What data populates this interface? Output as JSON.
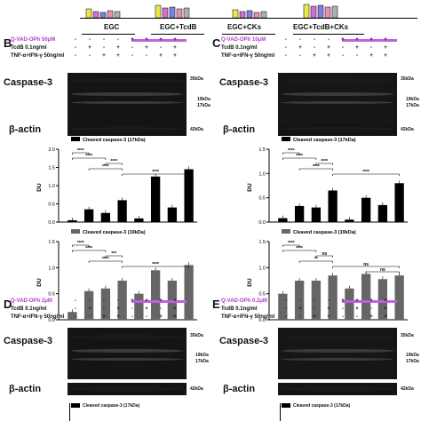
{
  "top_strip": {
    "groups": [
      "EGC",
      "EGC+TcdB",
      "EGC+CKs",
      "EGC+TcdB+CKs"
    ]
  },
  "panels": {
    "B": {
      "letter": "B",
      "inhibitor": "Q-VAD-OPh 50μM",
      "tcdb": "TcdB 0.1ng/ml",
      "cks": "TNF-α+IFN-γ 50ng/ml",
      "row_inhibitor": [
        "-",
        "-",
        "-",
        "-",
        "+",
        "+",
        "+",
        "+"
      ],
      "row_tcdb": [
        "-",
        "+",
        "-",
        "+",
        "-",
        "+",
        "-",
        "+"
      ],
      "row_cks": [
        "-",
        "-",
        "+",
        "+",
        "-",
        "-",
        "+",
        "+"
      ],
      "blot1": "Caspase-3",
      "blot2": "β-actin",
      "m35": "35kDa",
      "m19": "19kDa",
      "m17": "17kDa",
      "m42": "42kDa"
    },
    "C": {
      "letter": "C",
      "inhibitor": "Q-VAD-OPh 10μM",
      "tcdb": "TcdB 0.1ng/ml",
      "cks": "TNF-α+IFN-γ 50ng/ml",
      "row_inhibitor": [
        "-",
        "-",
        "-",
        "-",
        "+",
        "+",
        "+",
        "+"
      ],
      "row_tcdb": [
        "-",
        "+",
        "-",
        "+",
        "-",
        "+",
        "-",
        "+"
      ],
      "row_cks": [
        "-",
        "-",
        "+",
        "+",
        "-",
        "-",
        "+",
        "+"
      ],
      "blot1": "Caspase-3",
      "blot2": "β-actin",
      "m35": "35kDa",
      "m19": "19kDa",
      "m17": "17kDa",
      "m42": "42kDa"
    },
    "D": {
      "letter": "D",
      "inhibitor": "Q-VAD-OPh 2μM",
      "tcdb": "TcdB 0.1ng/ml",
      "cks": "TNF-α+IFN-γ 50ng/ml",
      "row_inhibitor": [
        "-",
        "-",
        "-",
        "-",
        "+",
        "+",
        "+",
        "+"
      ],
      "row_tcdb": [
        "-",
        "+",
        "-",
        "+",
        "-",
        "+",
        "-",
        "+"
      ],
      "row_cks": [
        "-",
        "-",
        "+",
        "+",
        "-",
        "-",
        "+",
        "+"
      ],
      "blot1": "Caspase-3",
      "blot2": "β-actin",
      "m35": "35kDa",
      "m19": "19kDa",
      "m17": "17kDa",
      "m42": "42kDa",
      "legend": "Cleaved caspase-3 (17kDa)"
    },
    "E": {
      "letter": "E",
      "inhibitor": "Q-VAD-OPh 0.2μM",
      "tcdb": "TcdB 0.1ng/ml",
      "cks": "TNF-α+IFN-γ 50ng/ml",
      "row_inhibitor": [
        "-",
        "-",
        "-",
        "-",
        "+",
        "+",
        "+",
        "+"
      ],
      "row_tcdb": [
        "-",
        "+",
        "-",
        "+",
        "-",
        "+",
        "-",
        "+"
      ],
      "row_cks": [
        "-",
        "-",
        "+",
        "+",
        "-",
        "-",
        "+",
        "+"
      ],
      "blot1": "Caspase-3",
      "blot2": "β-actin",
      "m35": "35kDa",
      "m19": "19kDa",
      "m17": "17kDa",
      "m42": "42kDa",
      "legend": "Cleaved caspase-3 (17kDa)"
    }
  },
  "chart_data": [
    {
      "type": "bar",
      "panel": "B",
      "legend": "Cleaved caspase-3 (17kDa)",
      "ylabel": "DU",
      "ylim": [
        0,
        2.0
      ],
      "yticks": [
        "0.0",
        "0.5",
        "1.0",
        "1.5",
        "2.0"
      ],
      "color": "#000000",
      "values": [
        0.05,
        0.35,
        0.25,
        0.6,
        0.1,
        1.25,
        0.4,
        1.45
      ],
      "sig": [
        "****",
        "****",
        "****",
        "****",
        "****"
      ]
    },
    {
      "type": "bar",
      "panel": "B",
      "legend": "Cleaved caspase-3 (19kDa)",
      "ylabel": "DU",
      "ylim": [
        0,
        1.5
      ],
      "yticks": [
        "0.0",
        "0.5",
        "1.0",
        "1.5"
      ],
      "color": "#666666",
      "values": [
        0.15,
        0.55,
        0.6,
        0.75,
        0.5,
        0.95,
        0.75,
        1.05
      ],
      "sig": [
        "****",
        "****",
        "***",
        "****",
        "****"
      ]
    },
    {
      "type": "bar",
      "panel": "C",
      "legend": "Cleaved caspase-3 (17kDa)",
      "ylabel": "DU",
      "ylim": [
        0,
        1.5
      ],
      "yticks": [
        "0.0",
        "0.5",
        "1.0",
        "1.5"
      ],
      "color": "#000000",
      "values": [
        0.08,
        0.33,
        0.3,
        0.65,
        0.05,
        0.5,
        0.35,
        0.8
      ],
      "sig": [
        "****",
        "****",
        "****",
        "****",
        "****"
      ]
    },
    {
      "type": "bar",
      "panel": "C",
      "legend": "Cleaved caspase-3 (19kDa)",
      "ylabel": "DU",
      "ylim": [
        0,
        1.5
      ],
      "yticks": [
        "0.0",
        "0.5",
        "1.0",
        "1.5"
      ],
      "color": "#666666",
      "values": [
        0.5,
        0.75,
        0.75,
        0.85,
        0.6,
        0.88,
        0.78,
        0.85
      ],
      "sig": [
        "****",
        "****",
        "ns",
        "**",
        "ns",
        "ns"
      ]
    }
  ]
}
